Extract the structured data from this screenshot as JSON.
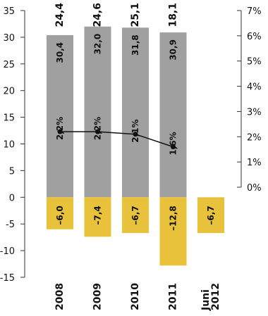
{
  "chart_data": {
    "type": "bar",
    "categories": [
      "2008",
      "2009",
      "2010",
      "2011",
      "Juni 2012"
    ],
    "series": [
      {
        "values": [
          30.4,
          32.0,
          31.8,
          30.9,
          null
        ],
        "labels": [
          "30,4",
          "32,0",
          "31,8",
          "30,9",
          ""
        ],
        "color": "#a0a0a0"
      },
      {
        "values": [
          -6.0,
          -7.4,
          -6.7,
          -12.8,
          -6.7
        ],
        "labels": [
          "–6,0",
          "–7,4",
          "–6,7",
          "–12,8",
          "–6,7"
        ],
        "color": "#e8c23a"
      },
      {
        "type": "line",
        "axis": "right",
        "values": [
          2.2,
          2.2,
          2.1,
          1.6,
          null
        ],
        "labels": [
          "2,2%",
          "2,2%",
          "2,1%",
          "1,6%",
          ""
        ],
        "color": "#111111"
      }
    ],
    "top_labels": [
      "24,4",
      "24,6",
      "25,1",
      "18,1",
      ""
    ],
    "category_labels": [
      [
        "2008"
      ],
      [
        "2009"
      ],
      [
        "2010"
      ],
      [
        "2011"
      ],
      [
        "Juni",
        "2012"
      ]
    ],
    "y_left": {
      "ylim": [
        -15,
        35
      ],
      "ticks": [
        35,
        30,
        25,
        20,
        15,
        10,
        5,
        0,
        -5,
        -10,
        -15
      ],
      "tick_labels": [
        "35",
        "30",
        "25",
        "20",
        "15",
        "10",
        "5",
        "0",
        "-5",
        "-10",
        "-15"
      ]
    },
    "y_right": {
      "ylim": [
        0,
        7
      ],
      "ticks": [
        7,
        6,
        5,
        4,
        3,
        2,
        1,
        0
      ],
      "tick_labels": [
        "7%",
        "6%",
        "5%",
        "4%",
        "3%",
        "2%",
        "1%",
        "0%"
      ]
    },
    "grid": false,
    "title": "",
    "xlabel": "",
    "ylabel": ""
  }
}
